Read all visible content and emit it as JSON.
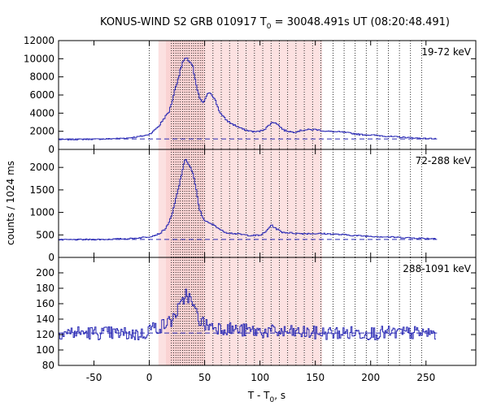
{
  "chart_data": {
    "type": "line",
    "title_main": "KONUS-WIND S2 GRB 010917 T",
    "title_sub": "0",
    "title_rest": " = 30048.491s UT (08:20:48.491)",
    "xlabel_main": "T - T",
    "xlabel_sub": "0",
    "xlabel_rest": ", s",
    "ylabel": "counts / 1024 ms",
    "xlim": [
      -82,
      295
    ],
    "xticks": [
      -50,
      0,
      50,
      100,
      150,
      200,
      250
    ],
    "grid": false,
    "colors": {
      "curve": "#2b2bb5",
      "background_line": "#2b2bb5",
      "shade": "#f9c9c9"
    },
    "shade_interval": [
      8.2,
      156.2
    ],
    "shade_alpha_inner": [
      15,
      50
    ],
    "vertical_dotted": {
      "dense_from": 20,
      "dense_to": 50,
      "dense_step": 2,
      "mid_from": 50,
      "mid_to": 156,
      "mid_step": 7.5,
      "sparse_from": 156,
      "sparse_to": 250,
      "sparse_step": 10,
      "t0": 0
    },
    "panels": [
      {
        "name": "19-72 keV",
        "ylim": [
          0,
          12000
        ],
        "yticks": [
          0,
          2000,
          4000,
          6000,
          8000,
          10000,
          12000
        ],
        "background": 1150,
        "noise": 60,
        "points": [
          [
            -82,
            1080
          ],
          [
            -40,
            1150
          ],
          [
            -20,
            1250
          ],
          [
            -10,
            1400
          ],
          [
            -3,
            1550
          ],
          [
            0,
            1700
          ],
          [
            3,
            1900
          ],
          [
            6,
            2300
          ],
          [
            9,
            2600
          ],
          [
            12,
            3200
          ],
          [
            15,
            3700
          ],
          [
            18,
            4200
          ],
          [
            21,
            5500
          ],
          [
            24,
            7000
          ],
          [
            27,
            8200
          ],
          [
            30,
            9600
          ],
          [
            33,
            10000
          ],
          [
            36,
            9800
          ],
          [
            39,
            9300
          ],
          [
            42,
            7200
          ],
          [
            45,
            5800
          ],
          [
            48,
            5100
          ],
          [
            51,
            5600
          ],
          [
            54,
            6400
          ],
          [
            57,
            6000
          ],
          [
            60,
            5300
          ],
          [
            63,
            4300
          ],
          [
            66,
            3700
          ],
          [
            70,
            3200
          ],
          [
            75,
            2800
          ],
          [
            80,
            2500
          ],
          [
            85,
            2200
          ],
          [
            90,
            2050
          ],
          [
            95,
            1950
          ],
          [
            100,
            2000
          ],
          [
            105,
            2300
          ],
          [
            110,
            2900
          ],
          [
            114,
            3000
          ],
          [
            118,
            2500
          ],
          [
            122,
            2100
          ],
          [
            130,
            1900
          ],
          [
            140,
            2150
          ],
          [
            150,
            2200
          ],
          [
            160,
            2000
          ],
          [
            175,
            1900
          ],
          [
            190,
            1650
          ],
          [
            205,
            1550
          ],
          [
            220,
            1400
          ],
          [
            235,
            1300
          ],
          [
            250,
            1200
          ]
        ]
      },
      {
        "name": "72-288 keV",
        "ylim": [
          0,
          2400
        ],
        "yticks": [
          0,
          500,
          1000,
          1500,
          2000
        ],
        "background": 400,
        "noise": 14,
        "points": [
          [
            -82,
            390
          ],
          [
            -40,
            400
          ],
          [
            -15,
            420
          ],
          [
            0,
            460
          ],
          [
            6,
            500
          ],
          [
            10,
            540
          ],
          [
            15,
            650
          ],
          [
            20,
            900
          ],
          [
            24,
            1300
          ],
          [
            27,
            1600
          ],
          [
            30,
            1950
          ],
          [
            33,
            2200
          ],
          [
            36,
            2050
          ],
          [
            39,
            1900
          ],
          [
            42,
            1550
          ],
          [
            45,
            1100
          ],
          [
            48,
            900
          ],
          [
            51,
            800
          ],
          [
            55,
            750
          ],
          [
            60,
            700
          ],
          [
            65,
            600
          ],
          [
            70,
            550
          ],
          [
            80,
            520
          ],
          [
            90,
            490
          ],
          [
            100,
            490
          ],
          [
            105,
            560
          ],
          [
            110,
            720
          ],
          [
            114,
            650
          ],
          [
            120,
            560
          ],
          [
            135,
            530
          ],
          [
            150,
            530
          ],
          [
            165,
            520
          ],
          [
            190,
            480
          ],
          [
            220,
            450
          ],
          [
            250,
            420
          ]
        ]
      },
      {
        "name": "288-1091 keV",
        "ylim": [
          80,
          220
        ],
        "yticks": [
          80,
          100,
          120,
          140,
          160,
          180,
          200
        ],
        "background": 122,
        "noise": 9,
        "points": [
          [
            -82,
            123
          ],
          [
            -40,
            122
          ],
          [
            -5,
            120
          ],
          [
            0,
            128
          ],
          [
            10,
            130
          ],
          [
            20,
            138
          ],
          [
            25,
            150
          ],
          [
            30,
            160
          ],
          [
            33,
            175
          ],
          [
            36,
            168
          ],
          [
            40,
            155
          ],
          [
            45,
            140
          ],
          [
            50,
            133
          ],
          [
            60,
            130
          ],
          [
            80,
            126
          ],
          [
            100,
            124
          ],
          [
            150,
            122
          ],
          [
            200,
            122
          ],
          [
            250,
            122
          ]
        ]
      }
    ]
  }
}
